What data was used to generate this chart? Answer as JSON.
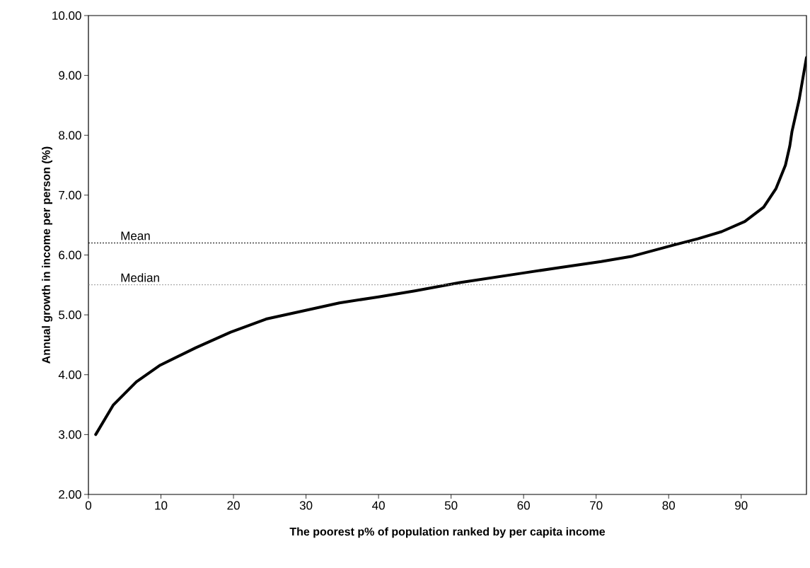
{
  "chart_data": {
    "type": "line",
    "xlabel": "The poorest p% of population ranked by per capita income",
    "ylabel": "Annual growth in income per person (%)",
    "x": [
      1,
      3.4,
      6.6,
      9.9,
      14.8,
      19.6,
      24.5,
      29.4,
      34.6,
      40,
      45,
      51.2,
      60,
      65,
      70.7,
      75,
      80.8,
      84,
      87.3,
      90.5,
      93.1,
      94.8,
      96.1,
      96.7,
      97,
      98,
      99
    ],
    "series": [
      {
        "color": "#000000",
        "values": [
          3.0,
          3.49,
          3.88,
          4.16,
          4.45,
          4.71,
          4.93,
          5.06,
          5.2,
          5.3,
          5.4,
          5.54,
          5.7,
          5.79,
          5.89,
          5.98,
          6.17,
          6.27,
          6.39,
          6.56,
          6.8,
          7.11,
          7.5,
          7.82,
          8.06,
          8.6,
          9.3
        ]
      }
    ],
    "xlim": [
      0,
      99
    ],
    "xticks": [
      0,
      10,
      20,
      30,
      40,
      50,
      60,
      70,
      80,
      90
    ],
    "ylim": [
      2,
      10
    ],
    "yticks": [
      {
        "value": 2,
        "label": "2.00"
      },
      {
        "value": 3,
        "label": "3.00"
      },
      {
        "value": 4,
        "label": "4.00"
      },
      {
        "value": 5,
        "label": "5.00"
      },
      {
        "value": 6,
        "label": "6.00"
      },
      {
        "value": 7,
        "label": "7.00"
      },
      {
        "value": 8,
        "label": "8.00"
      },
      {
        "value": 9,
        "label": "9.00"
      },
      {
        "value": 10,
        "label": "10.00"
      }
    ],
    "ref_lines": [
      {
        "axis": "y",
        "value": 6.2,
        "label": "Mean",
        "color": "#000000",
        "line_style": "dotted"
      },
      {
        "axis": "y",
        "value": 5.5,
        "label": "Median",
        "color": "#888888",
        "line_style": "dotted"
      }
    ],
    "grid": false,
    "marker": "none",
    "line_style": "solid"
  }
}
